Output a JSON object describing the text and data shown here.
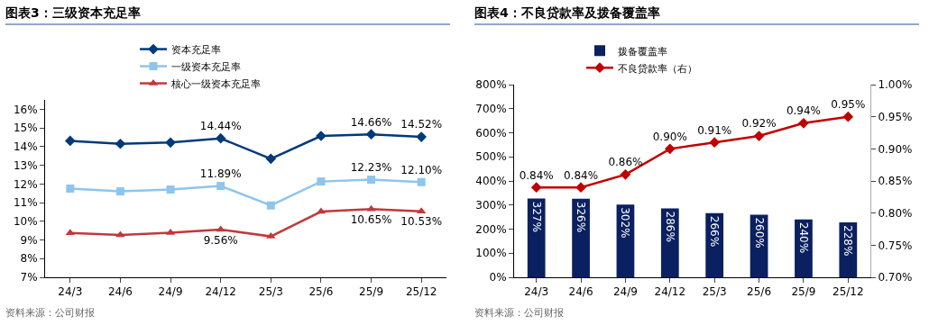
{
  "chart_data": [
    {
      "type": "line",
      "title": "图表3：三级资本充足率",
      "categories": [
        "24/3",
        "24/6",
        "24/9",
        "24/12",
        "25/3",
        "25/6",
        "25/9",
        "25/12"
      ],
      "series": [
        {
          "name": "资本充足率",
          "color": "#003a7a",
          "marker": "diamond",
          "values": [
            14.31,
            14.15,
            14.22,
            14.44,
            13.35,
            14.57,
            14.66,
            14.52
          ],
          "value_labels": [
            null,
            null,
            null,
            "14.44%",
            null,
            null,
            "14.66%",
            "14.52%"
          ]
        },
        {
          "name": "一级资本充足率",
          "color": "#8ec5ec",
          "marker": "square",
          "values": [
            11.75,
            11.6,
            11.7,
            11.89,
            10.85,
            12.13,
            12.23,
            12.1
          ],
          "value_labels": [
            null,
            null,
            null,
            "11.89%",
            null,
            null,
            "12.23%",
            "12.10%"
          ]
        },
        {
          "name": "核心一级资本充足率",
          "color": "#c0393b",
          "marker": "triangle",
          "values": [
            9.38,
            9.27,
            9.39,
            9.56,
            9.19,
            10.52,
            10.65,
            10.53
          ],
          "value_labels": [
            null,
            null,
            null,
            "9.56%",
            null,
            null,
            "10.65%",
            "10.53%"
          ]
        }
      ],
      "ylim": [
        7,
        16.5
      ],
      "yticks": [
        {
          "value": 7,
          "label": "7%"
        },
        {
          "value": 8,
          "label": "8%"
        },
        {
          "value": 9,
          "label": "9%"
        },
        {
          "value": 10,
          "label": "10%"
        },
        {
          "value": 11,
          "label": "11%"
        },
        {
          "value": 12,
          "label": "12%"
        },
        {
          "value": 13,
          "label": "13%"
        },
        {
          "value": 14,
          "label": "14%"
        },
        {
          "value": 15,
          "label": "15%"
        },
        {
          "value": 16,
          "label": "16%"
        }
      ],
      "grid": false,
      "legend": "top",
      "annotations": [
        "资料来源：公司财报"
      ]
    },
    {
      "type": "bar",
      "title": "图表4：不良贷款率及拨备覆盖率",
      "categories": [
        "24/3",
        "24/6",
        "24/9",
        "24/12",
        "25/3",
        "25/6",
        "25/9",
        "25/12"
      ],
      "series": [
        {
          "name": "拨备覆盖率",
          "color": "#0a2060",
          "values": [
            327,
            326,
            302,
            286,
            266,
            260,
            240,
            228
          ],
          "value_labels": [
            "327%",
            "326%",
            "302%",
            "286%",
            "266%",
            "260%",
            "240%",
            "228%"
          ]
        },
        {
          "name": "不良贷款率（右）",
          "type": "line",
          "axis": "y2",
          "color": "#c00000",
          "marker": "diamond",
          "values": [
            0.84,
            0.84,
            0.86,
            0.9,
            0.91,
            0.92,
            0.94,
            0.95
          ],
          "value_labels": [
            "0.84%",
            "0.84%",
            "0.86%",
            "0.90%",
            "0.91%",
            "0.92%",
            "0.94%",
            "0.95%"
          ]
        }
      ],
      "ylim": [
        0,
        800
      ],
      "yticks": [
        {
          "value": 0,
          "label": "0%"
        },
        {
          "value": 100,
          "label": "100%"
        },
        {
          "value": 200,
          "label": "200%"
        },
        {
          "value": 300,
          "label": "300%"
        },
        {
          "value": 400,
          "label": "400%"
        },
        {
          "value": 500,
          "label": "500%"
        },
        {
          "value": 600,
          "label": "600%"
        },
        {
          "value": 700,
          "label": "700%"
        },
        {
          "value": 800,
          "label": "800%"
        }
      ],
      "y2lim": [
        0.7,
        1.0
      ],
      "y2ticks": [
        {
          "value": 0.7,
          "label": "0.70%"
        },
        {
          "value": 0.75,
          "label": "0.75%"
        },
        {
          "value": 0.8,
          "label": "0.80%"
        },
        {
          "value": 0.85,
          "label": "0.85%"
        },
        {
          "value": 0.9,
          "label": "0.90%"
        },
        {
          "value": 0.95,
          "label": "0.95%"
        },
        {
          "value": 1.0,
          "label": "1.00%"
        }
      ],
      "grid": false,
      "legend": "top",
      "annotations": [
        "资料来源：公司财报"
      ]
    }
  ]
}
